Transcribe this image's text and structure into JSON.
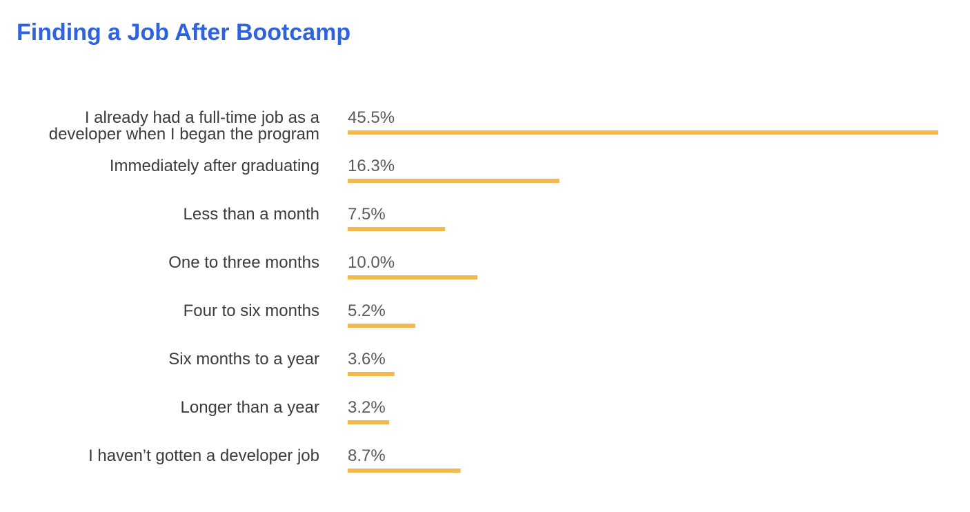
{
  "chart_data": {
    "type": "bar",
    "orientation": "horizontal",
    "title": "Finding a Job After Bootcamp",
    "categories": [
      [
        "I already had a full-time job as a",
        "developer when I began the program"
      ],
      [
        "Immediately after graduating"
      ],
      [
        "Less than a month"
      ],
      [
        "One to three months"
      ],
      [
        "Four to six months"
      ],
      [
        "Six months to a year"
      ],
      [
        "Longer than a year"
      ],
      [
        "I haven’t gotten a developer job"
      ]
    ],
    "values": [
      45.5,
      16.3,
      7.5,
      10.0,
      5.2,
      3.6,
      3.2,
      8.7
    ],
    "value_labels": [
      "45.5%",
      "16.3%",
      "7.5%",
      "10.0%",
      "5.2%",
      "3.6%",
      "3.2%",
      "8.7%"
    ],
    "unit": "%",
    "bar_color": "#f2b84b",
    "title_color": "#2e63dd",
    "grid": false,
    "legend": "none"
  }
}
